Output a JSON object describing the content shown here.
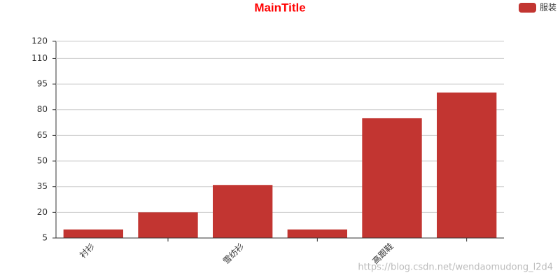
{
  "chart_data": {
    "type": "bar",
    "title": "MainTitle",
    "categories": [
      "衬衫",
      null,
      "雪纺衫",
      null,
      "高跟鞋",
      null
    ],
    "series": [
      {
        "name": "服装",
        "color": "#c23531",
        "values": [
          10,
          20,
          36,
          10,
          75,
          90
        ]
      }
    ],
    "ylim": [
      5,
      120
    ],
    "yticks": [
      5,
      20,
      35,
      50,
      65,
      80,
      95,
      110,
      120
    ],
    "grid": true,
    "legend": "top-right",
    "watermark": "https://blog.csdn.net/wendaomudong_l2d4"
  }
}
